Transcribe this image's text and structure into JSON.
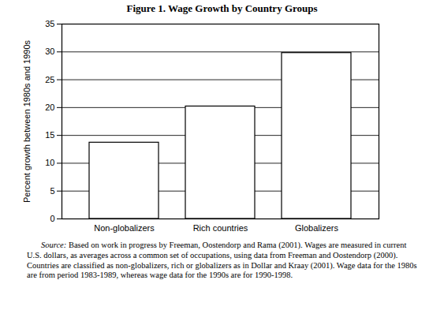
{
  "chart_data": {
    "type": "bar",
    "title": "Figure 1. Wage Growth by Country Groups",
    "y_label": "Percent growth between 1980s and 1990s",
    "categories": [
      "Non-globalizers",
      "Rich countries",
      "Globalizers"
    ],
    "values": [
      13.7,
      20.2,
      29.8
    ],
    "color": "#ffffff",
    "ylim": [
      0,
      35
    ],
    "yticks": [
      0,
      5,
      10,
      15,
      20,
      25,
      30,
      35
    ],
    "grid": true,
    "caption": "Source: Based on work in progress by Freeman, Oostendorp and Rama (2001). Wages are measured in current U.S. dollars, as averages across a common set of occupations, using data from Freeman and Oostendorp (2000). Countries are classified as non-globalizers, rich or globalizers as in Dollar and Kraay (2001). Wage data for the 1980s are from period 1983-1989, whereas wage data for the 1990s are for 1990-1998."
  }
}
